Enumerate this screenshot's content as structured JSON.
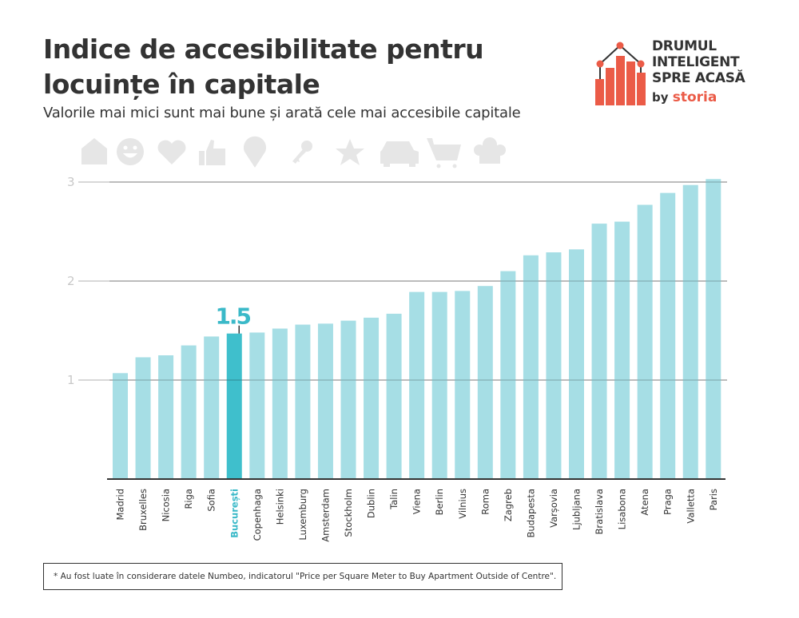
{
  "header": {
    "title": "Indice de accesibilitate pentru locuințe în capitale",
    "subtitle": "Valorile mai mici sunt mai bune și arată cele mai accesibile capitale"
  },
  "logo": {
    "line1": "DRUMUL",
    "line2": "INTELIGENT",
    "line3": "SPRE ACASĂ",
    "by": "by",
    "brand": "storia"
  },
  "icons": [
    "house-icon",
    "smiley-icon",
    "heart-icon",
    "thumbs-up-icon",
    "location-pin-icon",
    "key-icon",
    "star-icon",
    "car-icon",
    "shopping-cart-icon",
    "chef-hat-icon"
  ],
  "colors": {
    "bar": "#a6dee5",
    "highlight_bar": "#3fbfcc",
    "highlight_text": "#3ab9c8",
    "gridline": "#cccccc",
    "axis": "#333333",
    "text": "#333333",
    "logo_accent": "#eb5b47",
    "icon": "#e6e6e6"
  },
  "footnote": "* Au fost luate în considerare datele Numbeo, indicatorul \"Price per Square Meter to Buy Apartment Outside of Centre\".",
  "chart_data": {
    "type": "bar",
    "title": "Indice de accesibilitate pentru locuințe în capitale",
    "subtitle": "Valorile mai mici sunt mai bune și arată cele mai accesibile capitale",
    "xlabel": "",
    "ylabel": "",
    "ylim": [
      0,
      3.1
    ],
    "yticks": [
      1,
      2,
      3
    ],
    "grid": true,
    "legend": "none",
    "categories": [
      "Madrid",
      "Bruxelles",
      "Nicosia",
      "Riga",
      "Sofia",
      "București",
      "Copenhaga",
      "Helsinki",
      "Luxemburg",
      "Amsterdam",
      "Stockholm",
      "Dublin",
      "Talin",
      "Viena",
      "Berlin",
      "Vilnius",
      "Roma",
      "Zagreb",
      "Budapesta",
      "Varșovia",
      "Ljubljana",
      "Bratislava",
      "Lisabona",
      "Atena",
      "Praga",
      "Valletta",
      "Paris"
    ],
    "values": [
      1.07,
      1.23,
      1.25,
      1.35,
      1.44,
      1.47,
      1.48,
      1.52,
      1.56,
      1.57,
      1.6,
      1.63,
      1.67,
      1.89,
      1.89,
      1.9,
      1.95,
      2.1,
      2.26,
      2.29,
      2.32,
      2.58,
      2.6,
      2.77,
      2.89,
      2.97,
      3.03
    ],
    "highlight": {
      "category": "București",
      "label": "1.5"
    }
  }
}
